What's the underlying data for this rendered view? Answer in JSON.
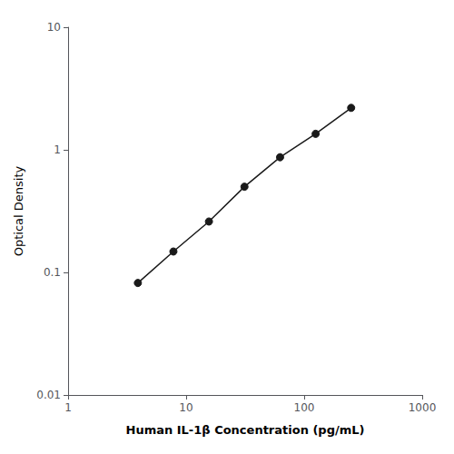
{
  "chart_data": {
    "type": "line",
    "x": [
      3.9,
      7.8,
      15.6,
      31.2,
      62.5,
      125.0,
      250.0
    ],
    "values": [
      0.082,
      0.148,
      0.26,
      0.5,
      0.87,
      1.35,
      2.2
    ],
    "xlabel": "Human IL-1β Concentration (pg/mL)",
    "ylabel": "Optical Density",
    "xlim": [
      1,
      1000
    ],
    "ylim": [
      0.01,
      10
    ],
    "xticks": [
      1,
      10,
      100,
      1000
    ],
    "yticks": [
      0.01,
      0.1,
      1,
      10
    ],
    "log": true,
    "grid": false,
    "color": "#1a1a1a",
    "marker": "circle"
  }
}
